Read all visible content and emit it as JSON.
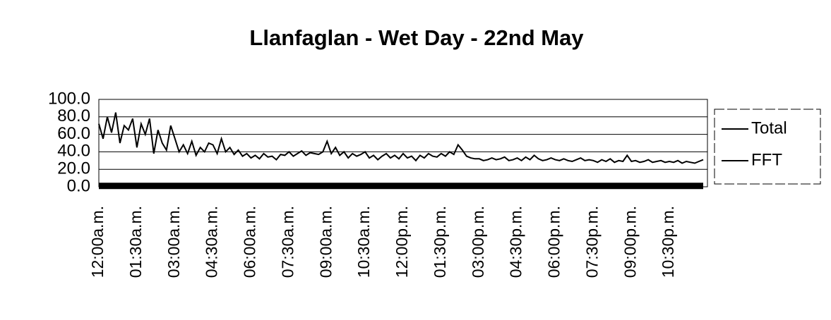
{
  "chart_data": {
    "type": "line",
    "title": "Llanfaglan - Wet Day - 22nd May",
    "categories": [
      "12:00a.m.",
      null,
      null,
      null,
      null,
      null,
      null,
      null,
      null,
      "01:30a.m.",
      null,
      null,
      null,
      null,
      null,
      null,
      null,
      null,
      "03:00a.m.",
      null,
      null,
      null,
      null,
      null,
      null,
      null,
      null,
      "04:30a.m.",
      null,
      null,
      null,
      null,
      null,
      null,
      null,
      null,
      "06:00a.m.",
      null,
      null,
      null,
      null,
      null,
      null,
      null,
      null,
      "07:30a.m.",
      null,
      null,
      null,
      null,
      null,
      null,
      null,
      null,
      "09:00a.m.",
      null,
      null,
      null,
      null,
      null,
      null,
      null,
      null,
      "10:30a.m.",
      null,
      null,
      null,
      null,
      null,
      null,
      null,
      null,
      "12:00p.m.",
      null,
      null,
      null,
      null,
      null,
      null,
      null,
      null,
      "01:30p.m.",
      null,
      null,
      null,
      null,
      null,
      null,
      null,
      null,
      "03:00p.m.",
      null,
      null,
      null,
      null,
      null,
      null,
      null,
      null,
      "04:30p.m.",
      null,
      null,
      null,
      null,
      null,
      null,
      null,
      null,
      "06:00p.m.",
      null,
      null,
      null,
      null,
      null,
      null,
      null,
      null,
      "07:30p.m.",
      null,
      null,
      null,
      null,
      null,
      null,
      null,
      null,
      "09:00p.m.",
      null,
      null,
      null,
      null,
      null,
      null,
      null,
      null,
      "10:30p.m.",
      null,
      null,
      null,
      null,
      null,
      null,
      null,
      null
    ],
    "series": [
      {
        "name": "Total",
        "color": "#000000",
        "values": [
          72,
          55,
          80,
          62,
          85,
          50,
          70,
          65,
          78,
          45,
          72,
          60,
          78,
          38,
          65,
          50,
          42,
          70,
          55,
          40,
          48,
          38,
          52,
          36,
          45,
          40,
          50,
          48,
          38,
          55,
          40,
          45,
          37,
          42,
          35,
          38,
          33,
          36,
          32,
          38,
          34,
          35,
          31,
          37,
          36,
          40,
          35,
          38,
          41,
          36,
          39,
          38,
          37,
          40,
          52,
          38,
          45,
          36,
          40,
          33,
          38,
          35,
          37,
          40,
          33,
          36,
          31,
          35,
          38,
          33,
          36,
          32,
          38,
          33,
          35,
          30,
          36,
          33,
          38,
          35,
          34,
          38,
          35,
          40,
          37,
          48,
          42,
          35,
          33,
          32,
          32,
          30,
          31,
          33,
          31,
          32,
          34,
          30,
          31,
          33,
          30,
          34,
          31,
          36,
          32,
          30,
          31,
          33,
          31,
          30,
          32,
          30,
          29,
          31,
          33,
          30,
          31,
          30,
          28,
          31,
          29,
          32,
          28,
          30,
          29,
          36,
          29,
          30,
          28,
          29,
          31,
          28,
          29,
          30,
          28,
          29,
          28,
          30,
          27,
          29,
          28,
          27,
          29,
          31
        ]
      },
      {
        "name": "FFT",
        "color": "#000000",
        "values": [
          1,
          1,
          1,
          1,
          1,
          1,
          1,
          1,
          1,
          1,
          1,
          1,
          1,
          1,
          1,
          1,
          1,
          1,
          1,
          1,
          1,
          1,
          1,
          1,
          1,
          1,
          1,
          1,
          1,
          1,
          1,
          1,
          1,
          1,
          1,
          1,
          1,
          1,
          1,
          1,
          1,
          1,
          1,
          1,
          1,
          1,
          1,
          1,
          1,
          1,
          1,
          1,
          1,
          1,
          1,
          1,
          1,
          1,
          1,
          1,
          1,
          1,
          1,
          1,
          1,
          1,
          1,
          1,
          1,
          1,
          1,
          1,
          1,
          1,
          1,
          1,
          1,
          1,
          1,
          1,
          1,
          1,
          1,
          1,
          1,
          1,
          1,
          1,
          1,
          1,
          1,
          1,
          1,
          1,
          1,
          1,
          1,
          1,
          1,
          1,
          1,
          1,
          1,
          1,
          1,
          1,
          1,
          1,
          1,
          1,
          1,
          1,
          1,
          1,
          1,
          1,
          1,
          1,
          1,
          1,
          1,
          1,
          1,
          1,
          1,
          1,
          1,
          1,
          1,
          1,
          1,
          1,
          1,
          1,
          1,
          1,
          1,
          1,
          1,
          1,
          1,
          1,
          1,
          1
        ]
      }
    ],
    "ylim": [
      0,
      100
    ],
    "yticks": [
      {
        "value": 0,
        "label": "0.0"
      },
      {
        "value": 20,
        "label": "20.0"
      },
      {
        "value": 40,
        "label": "40.0"
      },
      {
        "value": 60,
        "label": "60.0"
      },
      {
        "value": 80,
        "label": "80.0"
      },
      {
        "value": 100,
        "label": "100.0"
      }
    ],
    "grid": true,
    "legend": "right"
  }
}
